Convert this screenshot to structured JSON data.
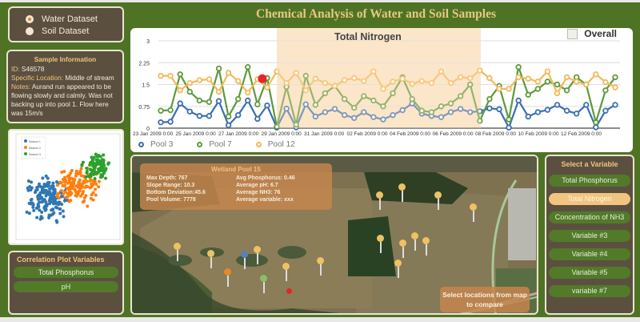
{
  "title": "Chemical Analysis of Water and Soil Samples",
  "dataset_selector": {
    "options": [
      {
        "label": "Water Dataset",
        "selected": true
      },
      {
        "label": "Soil  Dataset",
        "selected": false
      }
    ]
  },
  "sample_info": {
    "title": "Sample Information",
    "id_label": "ID:",
    "id_value": "S46578",
    "location_label": "Specific Location:",
    "location_value": "Middle of stream",
    "notes_label": "Notes:",
    "notes_value": "Aurand run appeared to be flowing slowly and calmly. Was not backing up into pool 1. Flow here was 15m/s"
  },
  "scatter": {
    "legend": [
      "Season 1",
      "Season 2",
      "Season 3"
    ],
    "colors": [
      "#2f77b4",
      "#ff7f0e",
      "#2ca02c"
    ]
  },
  "correlation": {
    "title": "Correlation Plot Variables",
    "variables": [
      "Total Phosphorus",
      "pH"
    ]
  },
  "chart": {
    "title": "Total Nitrogen",
    "overall_label": "Overall",
    "overall_checked": false
  },
  "chart_data": {
    "type": "line",
    "title": "Total Nitrogen",
    "xlabel": "",
    "ylabel": "",
    "ylim": [
      0,
      3
    ],
    "yticks": [
      "0",
      "0.75",
      "1.5",
      "2.25",
      "3"
    ],
    "xticks": [
      "23 Jan 2009 0:00",
      "25 Jan 2009 0:00",
      "27 Jan 2009 0:00",
      "29 Jan 2009 0:00",
      "31 Jan 2009 0:00",
      "02 Feb 2009 0:00",
      "04 Feb 2009 0:00",
      "06 Feb 2009 0:00",
      "08 Feb 2009 0:00",
      "10 Feb 2009 0:00",
      "12 Feb 2009 0:00"
    ],
    "grid": true,
    "legend_position": "bottom",
    "highlight_range": [
      "29 Jan 2009",
      "07 Feb 2009"
    ],
    "series": [
      {
        "name": "Pool 3",
        "color": "#3b6eb0",
        "values": [
          0.2,
          0.22,
          0.85,
          0.57,
          0.42,
          0.42,
          0.93,
          0.1,
          0.45,
          0.95,
          0.32,
          0.78,
          0.02,
          0.67,
          0.03,
          0.82,
          0.4,
          0.55,
          0.66,
          0.45,
          0.35,
          0.55,
          0.38,
          0.3,
          0.45,
          0.62,
          0.85,
          0.5,
          0.42,
          0.38,
          0.55,
          0.66,
          0.55,
          0.58,
          0.68,
          0.65,
          0.02,
          0.95,
          0.4,
          0.55,
          0.63,
          0.8,
          0.6,
          0.5,
          0.8,
          0.03,
          0.6,
          0.8
        ]
      },
      {
        "name": "Pool 7",
        "color": "#5d9a3d",
        "values": [
          0.6,
          0.62,
          1.85,
          1.25,
          0.95,
          0.9,
          2.05,
          0.4,
          1.0,
          2.1,
          0.82,
          1.72,
          0.05,
          1.42,
          0.12,
          1.8,
          0.8,
          1.2,
          1.45,
          1.0,
          0.7,
          1.1,
          0.95,
          0.75,
          1.2,
          1.75,
          1.0,
          0.6,
          0.55,
          0.75,
          0.85,
          1.1,
          1.5,
          0.25,
          1.0,
          1.45,
          0.3,
          2.1,
          1.15,
          1.35,
          1.6,
          1.5,
          1.3,
          1.75,
          1.5,
          0.2,
          1.3,
          1.75
        ]
      },
      {
        "name": "Pool 12",
        "color": "#f2b95a",
        "values": [
          1.8,
          1.8,
          1.3,
          1.55,
          1.65,
          1.68,
          1.25,
          1.9,
          1.62,
          1.22,
          1.68,
          1.4,
          1.95,
          1.55,
          1.9,
          1.3,
          1.7,
          1.55,
          1.45,
          1.65,
          1.72,
          1.62,
          1.95,
          1.35,
          1.6,
          1.7,
          1.52,
          1.62,
          1.55,
          1.95,
          1.55,
          1.75,
          1.72,
          1.98,
          1.72,
          1.35,
          1.35,
          1.75,
          1.7,
          1.6,
          1.95,
          1.2,
          1.75,
          1.6,
          1.5,
          1.85,
          1.58,
          1.4
        ]
      }
    ],
    "highlight_point": {
      "series": "Pool 12",
      "value": 1.7,
      "color": "#e8232a"
    }
  },
  "map": {
    "pool_info": {
      "title": "Wetland Pool 15",
      "max_depth_label": "Max Depth:",
      "max_depth": "767",
      "slope_range_label": "Slope Range:",
      "slope_range": "10.3",
      "bottom_deviation_label": "Bottom Deviation:",
      "bottom_deviation": "45.6",
      "pool_volume_label": "Pool Volume:",
      "pool_volume": "7778",
      "avg_phosphorus_label": "Avg Phosphorus:",
      "avg_phosphorus": "0.46",
      "avg_ph_label": "Average pH:",
      "avg_ph": "6.7",
      "avg_nh3_label": "Average NH3:",
      "avg_nh3": "76",
      "avg_variable_label": "Average variable:",
      "avg_variable": "xxx"
    },
    "compare_hint": "Select locations  from map to compare"
  },
  "variables": {
    "title": "Select a Variable",
    "items": [
      {
        "label": "Total Phosphorus",
        "active": false
      },
      {
        "label": "Total Nitrogen",
        "active": true
      },
      {
        "label": "Concentration of NH3",
        "active": false
      },
      {
        "label": "Variable #3",
        "active": false
      },
      {
        "label": "Variable #4",
        "active": false
      },
      {
        "label": "Variable #5",
        "active": false
      },
      {
        "label": "variable #7",
        "active": false
      }
    ]
  }
}
